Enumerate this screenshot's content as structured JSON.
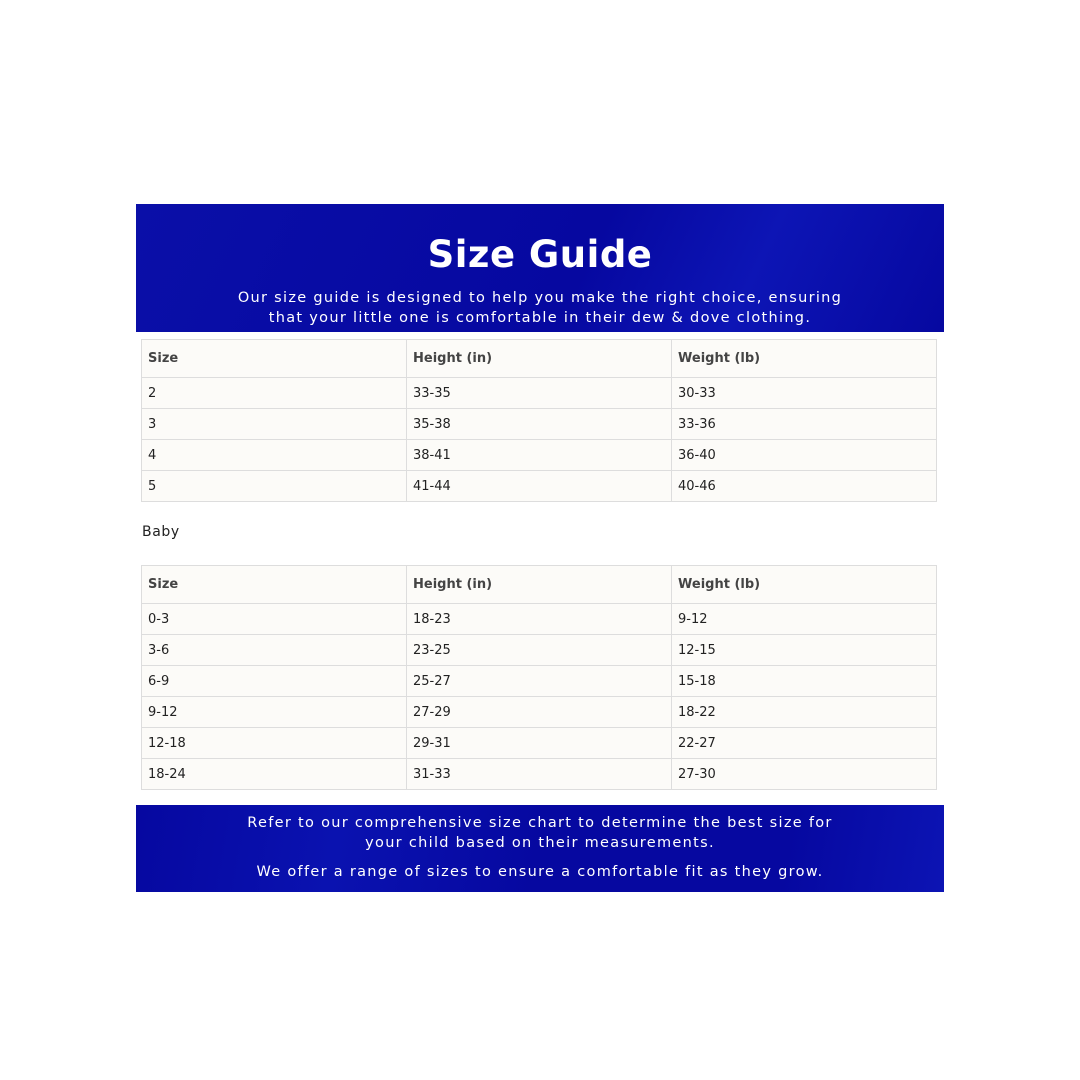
{
  "header": {
    "title": "Size Guide",
    "subtitle_line1": "Our size guide is designed to help you make the right choice, ensuring",
    "subtitle_line2": "that your little one is comfortable in their dew & dove clothing."
  },
  "colors": {
    "banner": "#0608a0",
    "table_bg": "#fcfbf8",
    "border": "#dddddd"
  },
  "toddler_table": {
    "columns": [
      "Size",
      "Height (in)",
      "Weight (lb)"
    ],
    "rows": [
      [
        "2",
        "33-35",
        "30-33"
      ],
      [
        "3",
        "35-38",
        "33-36"
      ],
      [
        "4",
        "38-41",
        "36-40"
      ],
      [
        "5",
        "41-44",
        "40-46"
      ]
    ]
  },
  "baby_section": {
    "label": "Baby"
  },
  "baby_table": {
    "columns": [
      "Size",
      "Height (in)",
      "Weight (lb)"
    ],
    "rows": [
      [
        "0-3",
        "18-23",
        "9-12"
      ],
      [
        "3-6",
        "23-25",
        "12-15"
      ],
      [
        "6-9",
        "25-27",
        "15-18"
      ],
      [
        "9-12",
        "27-29",
        "18-22"
      ],
      [
        "12-18",
        "29-31",
        "22-27"
      ],
      [
        "18-24",
        "31-33",
        "27-30"
      ]
    ]
  },
  "footer": {
    "line1": "Refer to our comprehensive size chart to determine the best size for",
    "line2": "your child based on their measurements.",
    "line3": "We offer a range of sizes to ensure a comfortable fit as they grow."
  }
}
